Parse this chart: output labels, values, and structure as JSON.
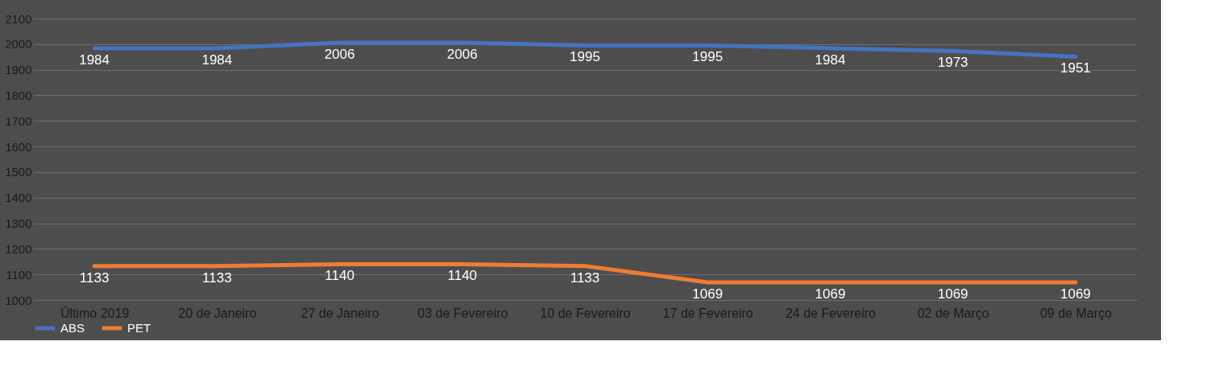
{
  "chart_data": {
    "type": "line",
    "categories": [
      "Último 2019",
      "20 de Janeiro",
      "27 de Janeiro",
      "03 de Fevereiro",
      "10 de Fevereiro",
      "17 de Fevereiro",
      "24 de Fevereiro",
      "02 de Março",
      "09 de Março"
    ],
    "series": [
      {
        "name": "ABS",
        "color": "#4472c4",
        "values": [
          1984,
          1984,
          2006,
          2006,
          1995,
          1995,
          1984,
          1973,
          1951
        ]
      },
      {
        "name": "PET",
        "color": "#ed7d31",
        "values": [
          1133,
          1133,
          1140,
          1140,
          1133,
          1069,
          1069,
          1069,
          1069
        ]
      }
    ],
    "ylim": [
      1000,
      2100
    ],
    "yticks": [
      1000,
      1100,
      1200,
      1300,
      1400,
      1500,
      1600,
      1700,
      1800,
      1900,
      2000,
      2100
    ],
    "grid": "y",
    "legend": "bottom",
    "data_labels": true,
    "marker": "none",
    "line_style": "solid"
  }
}
